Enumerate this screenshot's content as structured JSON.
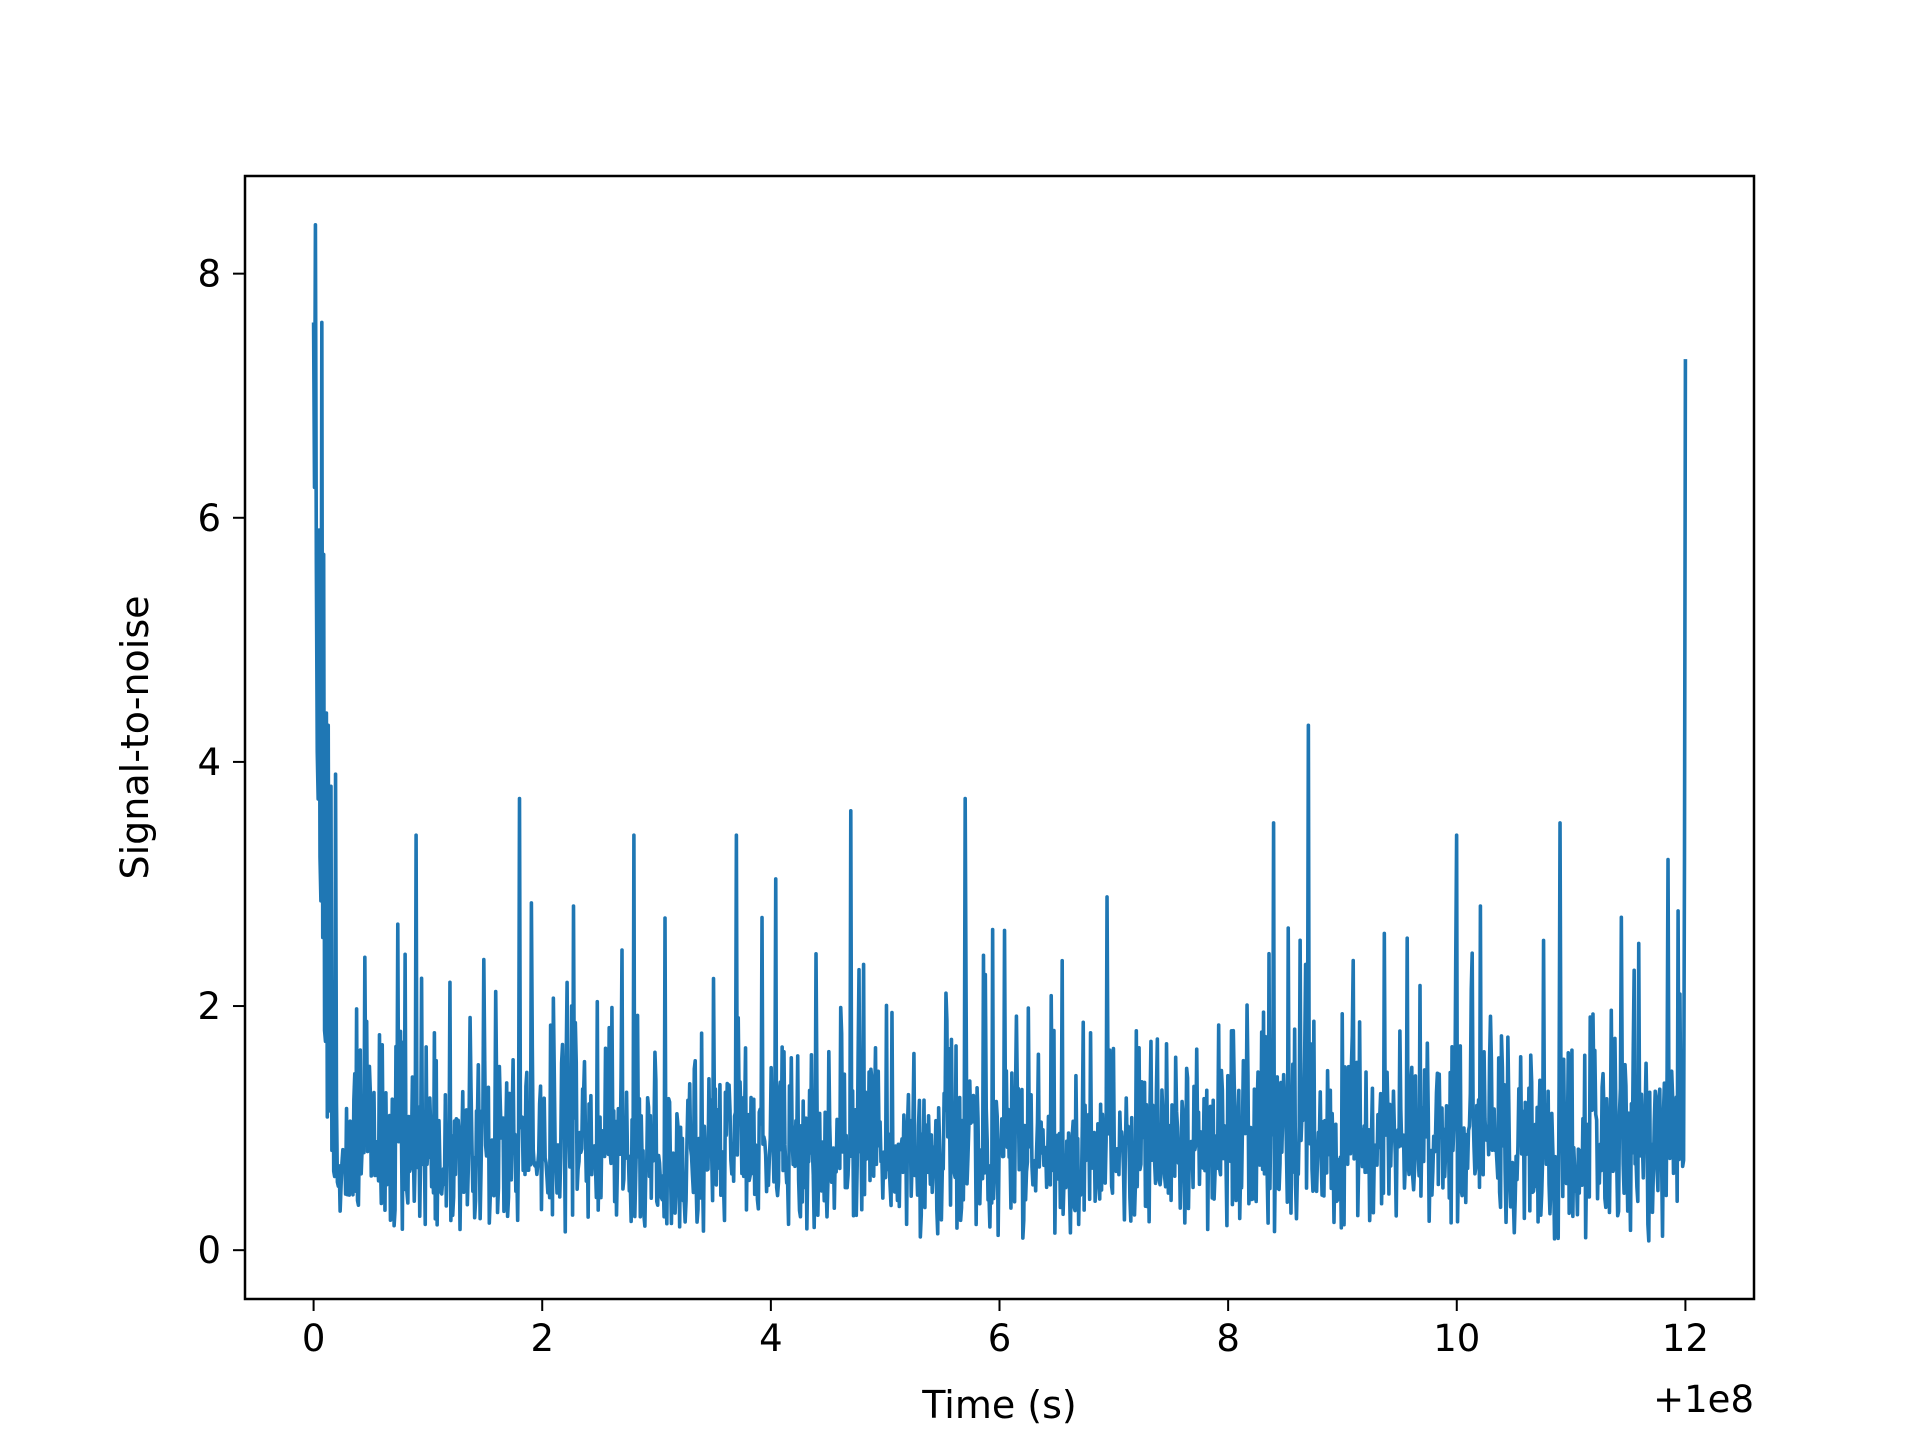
{
  "chart_data": {
    "type": "line",
    "title": "",
    "xlabel": "Time (s)",
    "ylabel": "Signal-to-noise",
    "x_offset_text": "+1e8",
    "xlim": [
      -0.6,
      12.6
    ],
    "ylim": [
      -0.4,
      8.8
    ],
    "xticks": [
      0,
      2,
      4,
      6,
      8,
      10,
      12
    ],
    "yticks": [
      0,
      2,
      4,
      6,
      8
    ],
    "xtick_labels": [
      "0",
      "2",
      "4",
      "6",
      "8",
      "10",
      "12"
    ],
    "ytick_labels": [
      "0",
      "2",
      "4",
      "6",
      "8"
    ],
    "grid": false,
    "legend": false,
    "series": [
      {
        "color": "#1f77b4",
        "x_start": 0,
        "x_end": 12,
        "n_points": 1500,
        "noise_range": [
          0,
          3.7
        ],
        "peaks": [
          {
            "x": 0.0,
            "y": 7.6
          },
          {
            "x": 0.02,
            "y": 8.4
          },
          {
            "x": 0.05,
            "y": 5.9
          },
          {
            "x": 0.07,
            "y": 7.6
          },
          {
            "x": 0.09,
            "y": 5.7
          },
          {
            "x": 0.11,
            "y": 4.4
          },
          {
            "x": 0.13,
            "y": 4.3
          },
          {
            "x": 0.15,
            "y": 3.8
          },
          {
            "x": 0.17,
            "y": 2.2
          },
          {
            "x": 0.19,
            "y": 3.9
          },
          {
            "x": 0.9,
            "y": 3.4
          },
          {
            "x": 1.8,
            "y": 3.7
          },
          {
            "x": 2.8,
            "y": 3.4
          },
          {
            "x": 3.7,
            "y": 3.4
          },
          {
            "x": 4.7,
            "y": 3.6
          },
          {
            "x": 5.7,
            "y": 3.7
          },
          {
            "x": 8.4,
            "y": 3.5
          },
          {
            "x": 8.7,
            "y": 4.3
          },
          {
            "x": 10.0,
            "y": 3.4
          },
          {
            "x": 10.9,
            "y": 3.5
          },
          {
            "x": 11.85,
            "y": 3.2
          },
          {
            "x": 12.0,
            "y": 7.3
          }
        ]
      }
    ]
  }
}
